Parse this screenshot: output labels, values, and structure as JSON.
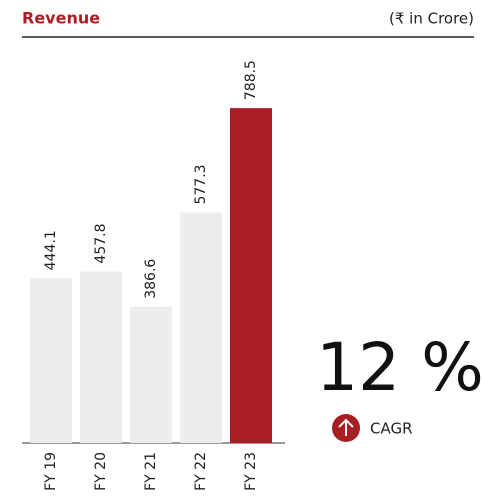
{
  "chart_data": {
    "type": "bar",
    "title": "Revenue",
    "subtitle": "(₹ in Crore)",
    "categories": [
      "FY 19",
      "FY 20",
      "FY 21",
      "FY 22",
      "FY 23"
    ],
    "values": [
      444.1,
      457.8,
      386.6,
      577.3,
      788.5
    ],
    "colors": [
      "#ededeb",
      "#ededeb",
      "#ededeb",
      "#ededeb",
      "#a81e24"
    ],
    "ylim": [
      111,
      900
    ],
    "annotation": "12 %",
    "annotation_label": "CAGR"
  }
}
